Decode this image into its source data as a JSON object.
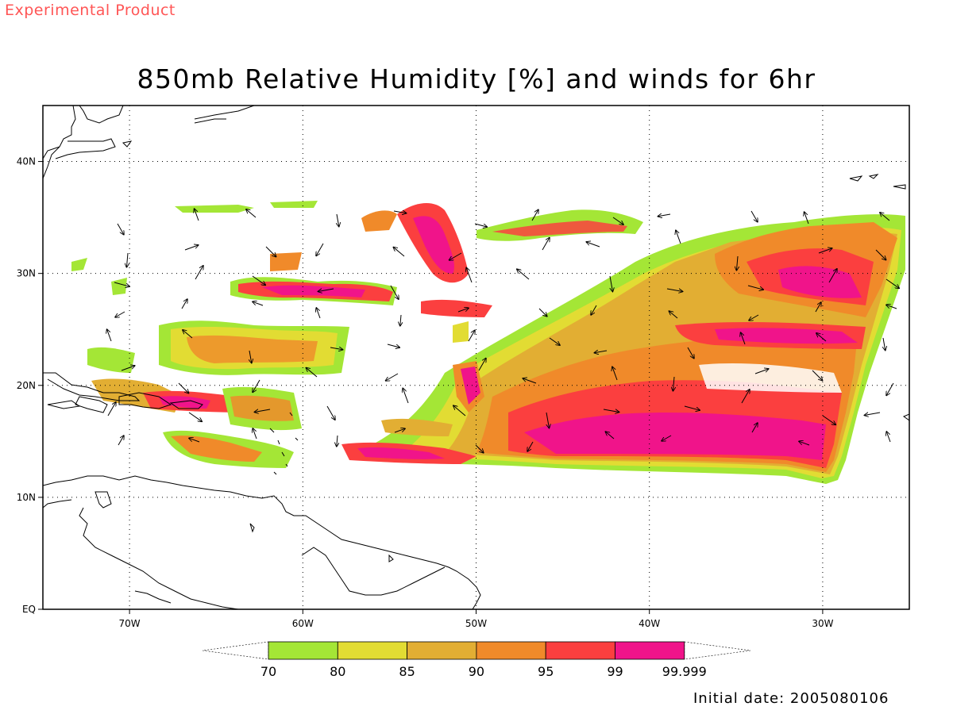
{
  "header": {
    "experimental_label": "Experimental Product",
    "title": "850mb Relative Humidity [%] and winds for 6hr"
  },
  "footer": {
    "initial_date": "Initial date: 2005080106"
  },
  "axes": {
    "lon_ticks": [
      "70W",
      "60W",
      "50W",
      "40W",
      "30W"
    ],
    "lat_ticks": [
      "40N",
      "30N",
      "20N",
      "10N",
      "EQ"
    ],
    "lon_values": [
      -70,
      -60,
      -50,
      -40,
      -30
    ],
    "lat_values": [
      40,
      30,
      20,
      10,
      0
    ],
    "lon_range": [
      -75,
      -25
    ],
    "lat_range": [
      0,
      45
    ]
  },
  "colorbar": {
    "labels": [
      "70",
      "80",
      "85",
      "90",
      "95",
      "99",
      "99.999"
    ],
    "colors": [
      "#a4e636",
      "#e2dc33",
      "#e2ae33",
      "#f08a2a",
      "#fb3f3f",
      "#f0148a"
    ]
  },
  "colors": {
    "rh_70_80": "#a4e636",
    "rh_80_85": "#e2dc33",
    "rh_85_90": "#e2ae33",
    "rh_90_95": "#f08a2a",
    "rh_95_99": "#fb3f3f",
    "rh_99_100": "#f0148a",
    "experimental_label": "#ff5555"
  }
}
